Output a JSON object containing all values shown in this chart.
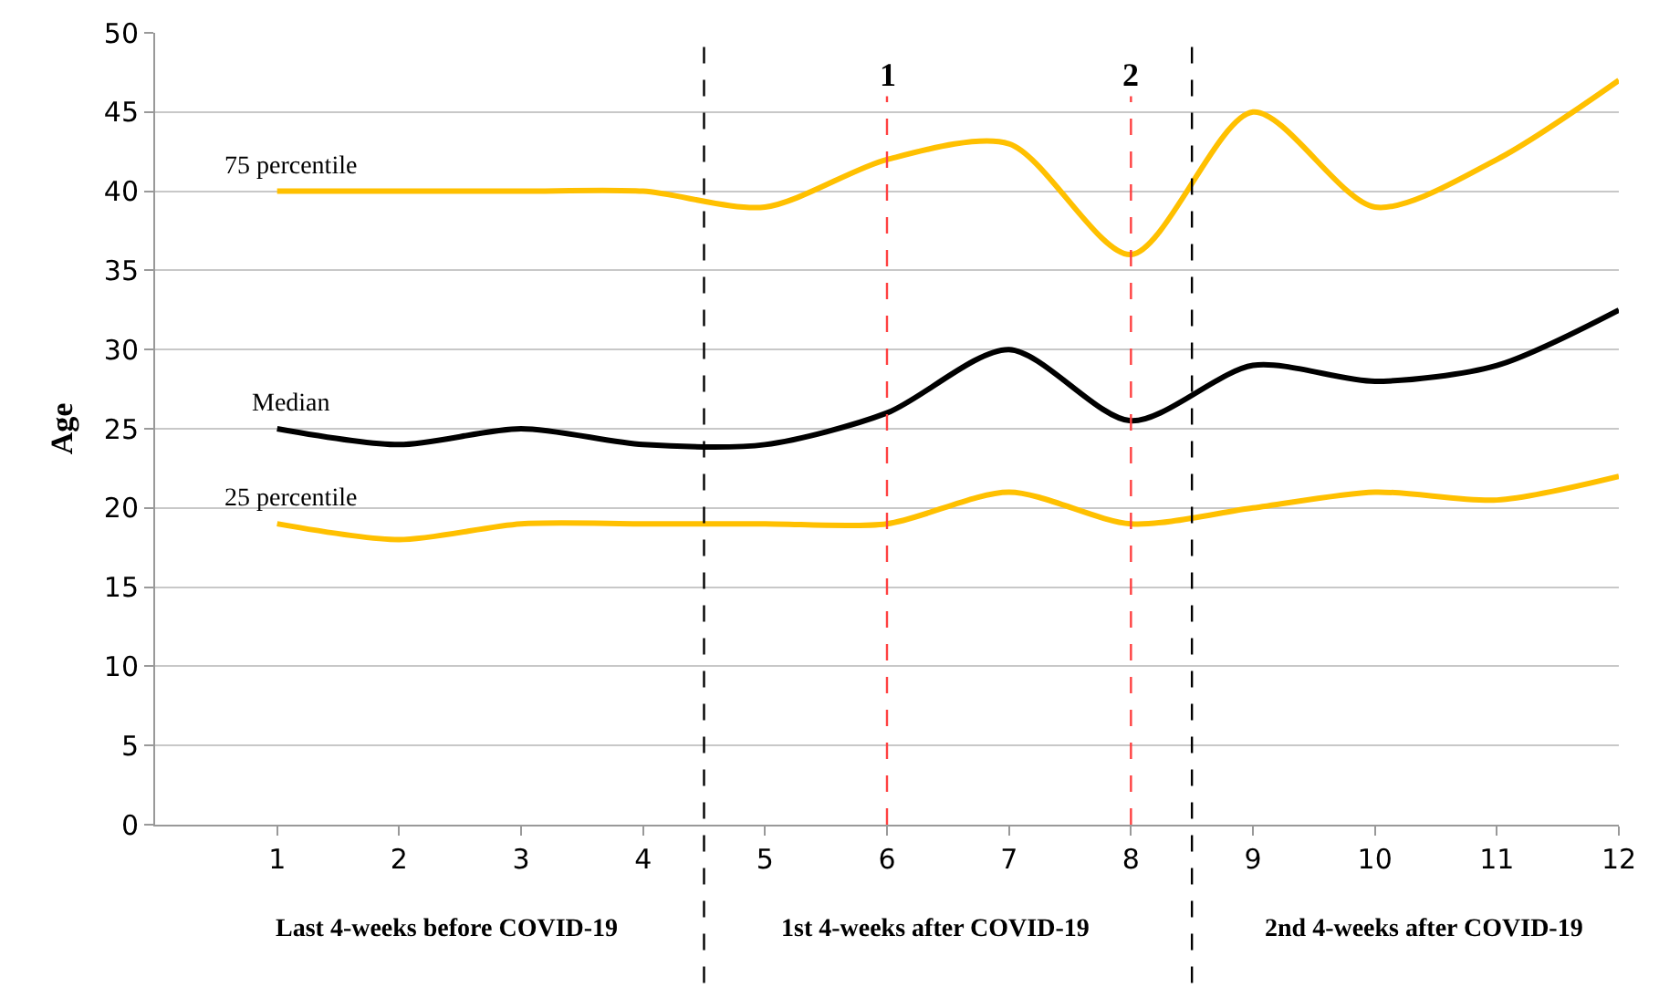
{
  "chart_data": {
    "type": "line",
    "ylabel": "Age",
    "x": [
      1,
      2,
      3,
      4,
      5,
      6,
      7,
      8,
      9,
      10,
      11,
      12
    ],
    "xlim": [
      0,
      12
    ],
    "xticks": [
      1,
      2,
      3,
      4,
      5,
      6,
      7,
      8,
      9,
      10,
      11,
      12
    ],
    "ylim": [
      0,
      50
    ],
    "yticks": [
      0,
      5,
      10,
      15,
      20,
      25,
      30,
      35,
      40,
      45,
      50
    ],
    "grid": "y",
    "legend": false,
    "marker": "none",
    "line_style": "solid",
    "series": [
      {
        "name": "75 percentile",
        "color": "#ffc000",
        "values": [
          40,
          40,
          40,
          40,
          39,
          42,
          43,
          36,
          45,
          39,
          42,
          47
        ]
      },
      {
        "name": "Median",
        "color": "#000000",
        "values": [
          25,
          24,
          25,
          24,
          24,
          26,
          30,
          25.5,
          29,
          28,
          29,
          32.5
        ]
      },
      {
        "name": "25 percentile",
        "color": "#ffc000",
        "values": [
          19,
          18,
          19,
          19,
          19,
          19,
          21,
          19,
          20,
          21,
          20.5,
          22
        ]
      }
    ],
    "ref_lines": [
      {
        "axis": "x",
        "value": 4.5,
        "label": null,
        "color": "#000000",
        "line_style": "dashed"
      },
      {
        "axis": "x",
        "value": 8.5,
        "label": null,
        "color": "#000000",
        "line_style": "dashed"
      },
      {
        "axis": "x",
        "value": 6,
        "label": null,
        "color": "#ff4040",
        "line_style": "dashed"
      },
      {
        "axis": "x",
        "value": 8,
        "label": null,
        "color": "#ff4040",
        "line_style": "dashed"
      }
    ],
    "annotations": [
      "Last 4-weeks before COVID-19",
      "1st 4-weeks after COVID-19",
      "2nd 4-weeks after COVID-19",
      {
        "text": "1",
        "x": 6,
        "y": 46
      },
      {
        "text": "2",
        "x": 8,
        "y": 46
      }
    ]
  }
}
